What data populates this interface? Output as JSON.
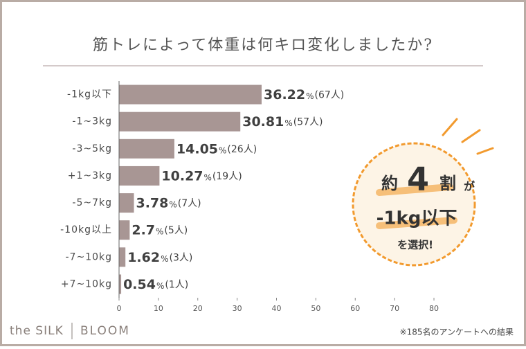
{
  "chart_data": {
    "type": "barh",
    "title": "筋トレによって体重は何キロ変化しましたか?",
    "categories": [
      "-1kg以下",
      "-1~3kg",
      "-3~5kg",
      "+1~3kg",
      "-5~7kg",
      "-10kg以上",
      "-7~10kg",
      "+7~10kg"
    ],
    "values": [
      36.22,
      30.81,
      14.05,
      10.27,
      3.78,
      2.7,
      1.62,
      0.54
    ],
    "value_unit": "%",
    "count_labels": [
      "(67人)",
      "(57人)",
      "(26人)",
      "(19人)",
      "(7人)",
      "(5人)",
      "(3人)",
      "(1人)"
    ],
    "color": "#a89694",
    "xlim": [
      0,
      80
    ],
    "xticks": [
      0,
      10,
      20,
      30,
      40,
      50,
      60,
      70,
      80
    ],
    "callout": [
      "約",
      "4",
      "割",
      "が",
      "-1kg以下",
      "を選択!"
    ],
    "brand": [
      "the SILK",
      "BLOOM"
    ],
    "note": "※185名のアンケートへの結果"
  }
}
